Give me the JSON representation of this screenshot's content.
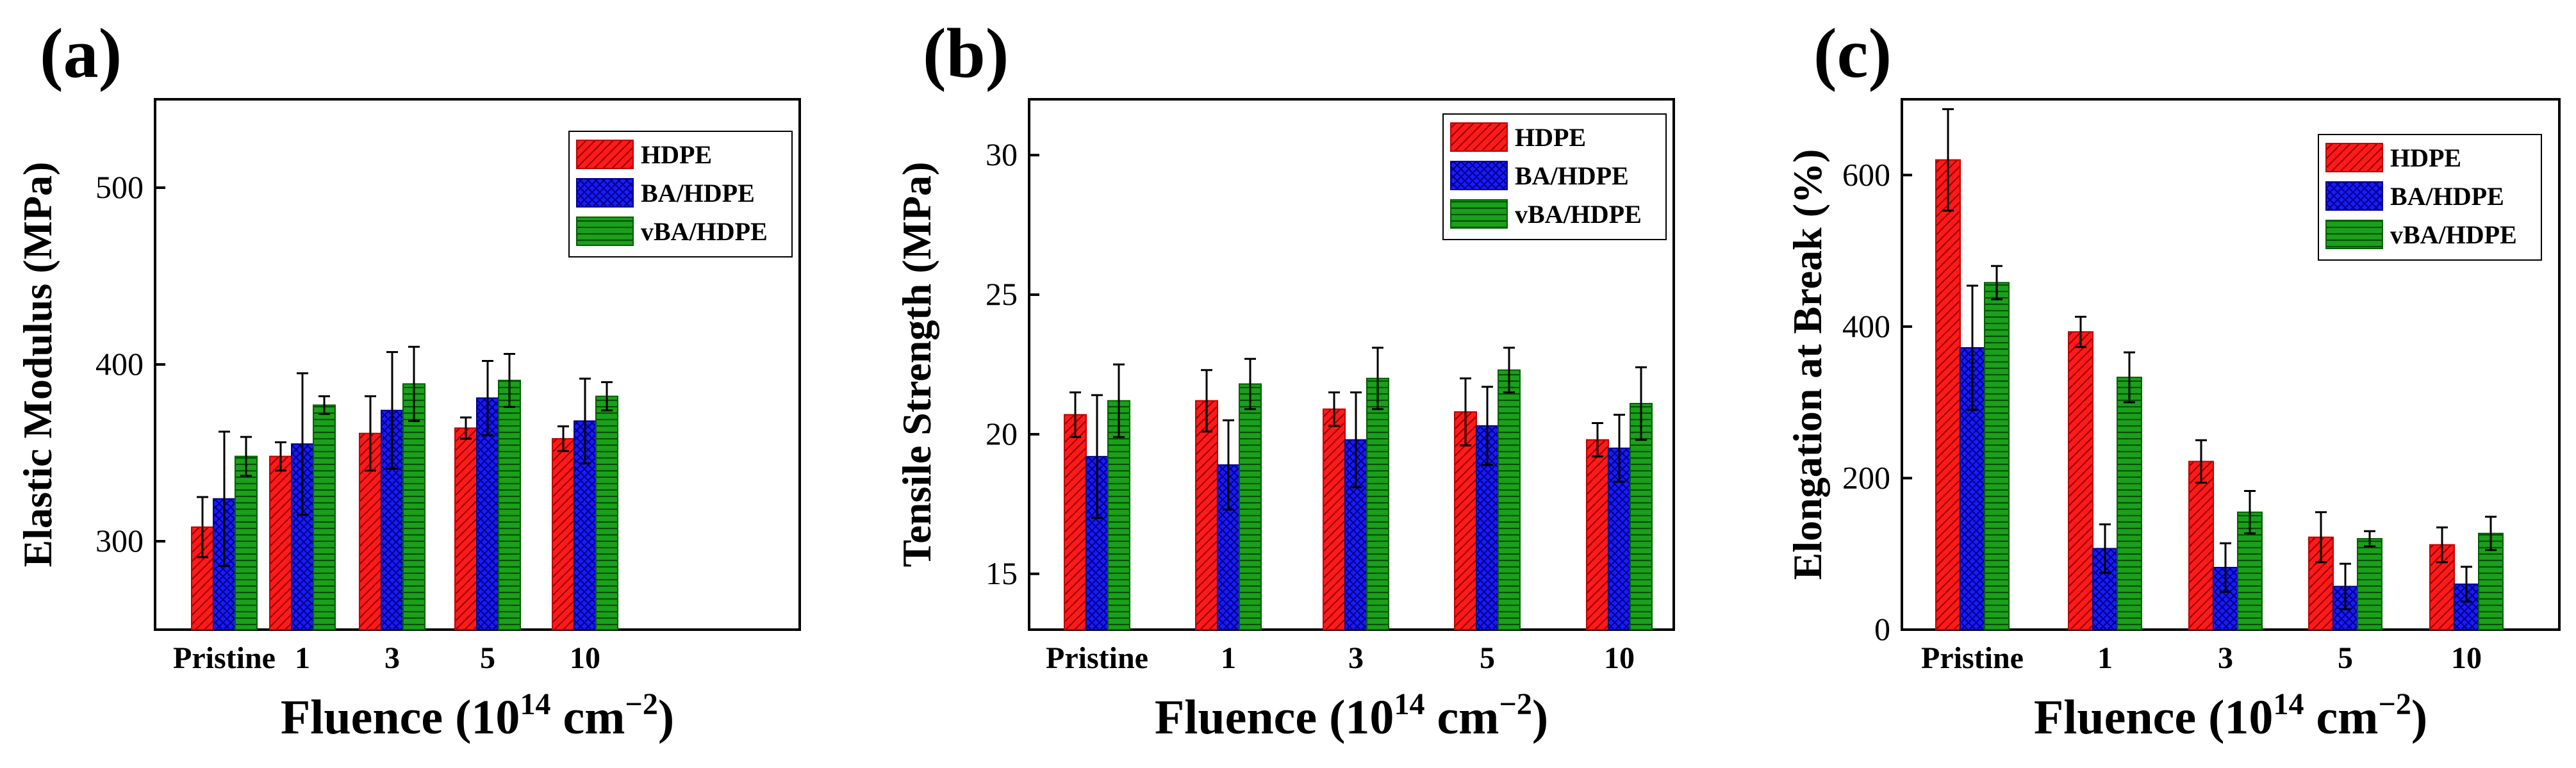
{
  "figure": {
    "xlabel_main": "Fluence (10",
    "xlabel_sup": "14",
    "xlabel_mid": " cm",
    "xlabel_sup2": "−2",
    "xlabel_end": ")"
  },
  "legend": [
    {
      "name": "HDPE",
      "color": "#ff1a1a",
      "pattern": "diag"
    },
    {
      "name": "BA/HDPE",
      "color": "#1a1aff",
      "pattern": "cross"
    },
    {
      "name": "vBA/HDPE",
      "color": "#1aa01a",
      "pattern": "horiz"
    }
  ],
  "chart_data": [
    {
      "type": "bar",
      "panel_label": "(a)",
      "ylabel": "Elastic Modulus (MPa)",
      "ylim": [
        250,
        550
      ],
      "yticks": [
        300,
        400,
        500
      ],
      "categories": [
        "Pristine",
        "1",
        "3",
        "5",
        "10"
      ],
      "legend_position": "top-right",
      "series": [
        {
          "name": "HDPE",
          "values": [
            308,
            348,
            361,
            364,
            358
          ],
          "errors": [
            17,
            8,
            21,
            6,
            7
          ]
        },
        {
          "name": "BA/HDPE",
          "values": [
            324,
            355,
            374,
            381,
            368
          ],
          "errors": [
            38,
            40,
            33,
            21,
            24
          ]
        },
        {
          "name": "vBA/HDPE",
          "values": [
            348,
            377,
            389,
            391,
            382
          ],
          "errors": [
            11,
            5,
            21,
            15,
            8
          ]
        }
      ]
    },
    {
      "type": "bar",
      "panel_label": "(b)",
      "ylabel": "Tensile Strength (MPa)",
      "ylim": [
        13,
        32
      ],
      "yticks": [
        15,
        20,
        25,
        30
      ],
      "categories": [
        "Pristine",
        "1",
        "3",
        "5",
        "10"
      ],
      "legend_position": "top-right",
      "series": [
        {
          "name": "HDPE",
          "values": [
            20.7,
            21.2,
            20.9,
            20.8,
            19.8
          ],
          "errors": [
            0.8,
            1.1,
            0.6,
            1.2,
            0.6
          ]
        },
        {
          "name": "BA/HDPE",
          "values": [
            19.2,
            18.9,
            19.8,
            20.3,
            19.5
          ],
          "errors": [
            2.2,
            1.6,
            1.7,
            1.4,
            1.2
          ]
        },
        {
          "name": "vBA/HDPE",
          "values": [
            21.2,
            21.8,
            22.0,
            22.3,
            21.1
          ],
          "errors": [
            1.3,
            0.9,
            1.1,
            0.8,
            1.3
          ]
        }
      ]
    },
    {
      "type": "bar",
      "panel_label": "(c)",
      "ylabel": "Elongation at Break (%)",
      "ylim": [
        0,
        700
      ],
      "yticks": [
        0,
        200,
        400,
        600
      ],
      "categories": [
        "Pristine",
        "1",
        "3",
        "5",
        "10"
      ],
      "legend_position": "top-right",
      "series": [
        {
          "name": "HDPE",
          "values": [
            620,
            393,
            222,
            122,
            112
          ],
          "errors": [
            67,
            20,
            28,
            33,
            23
          ]
        },
        {
          "name": "BA/HDPE",
          "values": [
            372,
            107,
            82,
            57,
            60
          ],
          "errors": [
            82,
            32,
            32,
            30,
            23
          ]
        },
        {
          "name": "vBA/HDPE",
          "values": [
            458,
            333,
            155,
            120,
            127
          ],
          "errors": [
            22,
            33,
            28,
            10,
            22
          ]
        }
      ]
    }
  ]
}
